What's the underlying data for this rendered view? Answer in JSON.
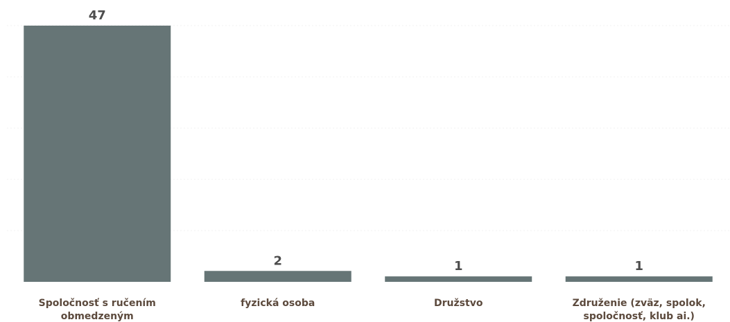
{
  "chart_data": {
    "type": "bar",
    "categories": [
      [
        "Spoločnosť s ručením",
        "obmedzeným"
      ],
      [
        "fyzická osoba"
      ],
      [
        "Družstvo"
      ],
      [
        "Združenie (zväz, spolok,",
        "spoločnosť, klub ai.)"
      ]
    ],
    "values": [
      47,
      2,
      1,
      1
    ],
    "value_labels": [
      "47",
      "2",
      "1",
      "1"
    ],
    "title": "",
    "xlabel": "",
    "ylabel": "",
    "ylim": [
      0,
      47
    ],
    "grid": true,
    "legend": "none",
    "colors": {
      "bar": "#667576",
      "value_label": "#4d4d4d",
      "category_label": "#5c4a3d",
      "grid": "#f2f2f2",
      "background": "#ffffff"
    }
  }
}
